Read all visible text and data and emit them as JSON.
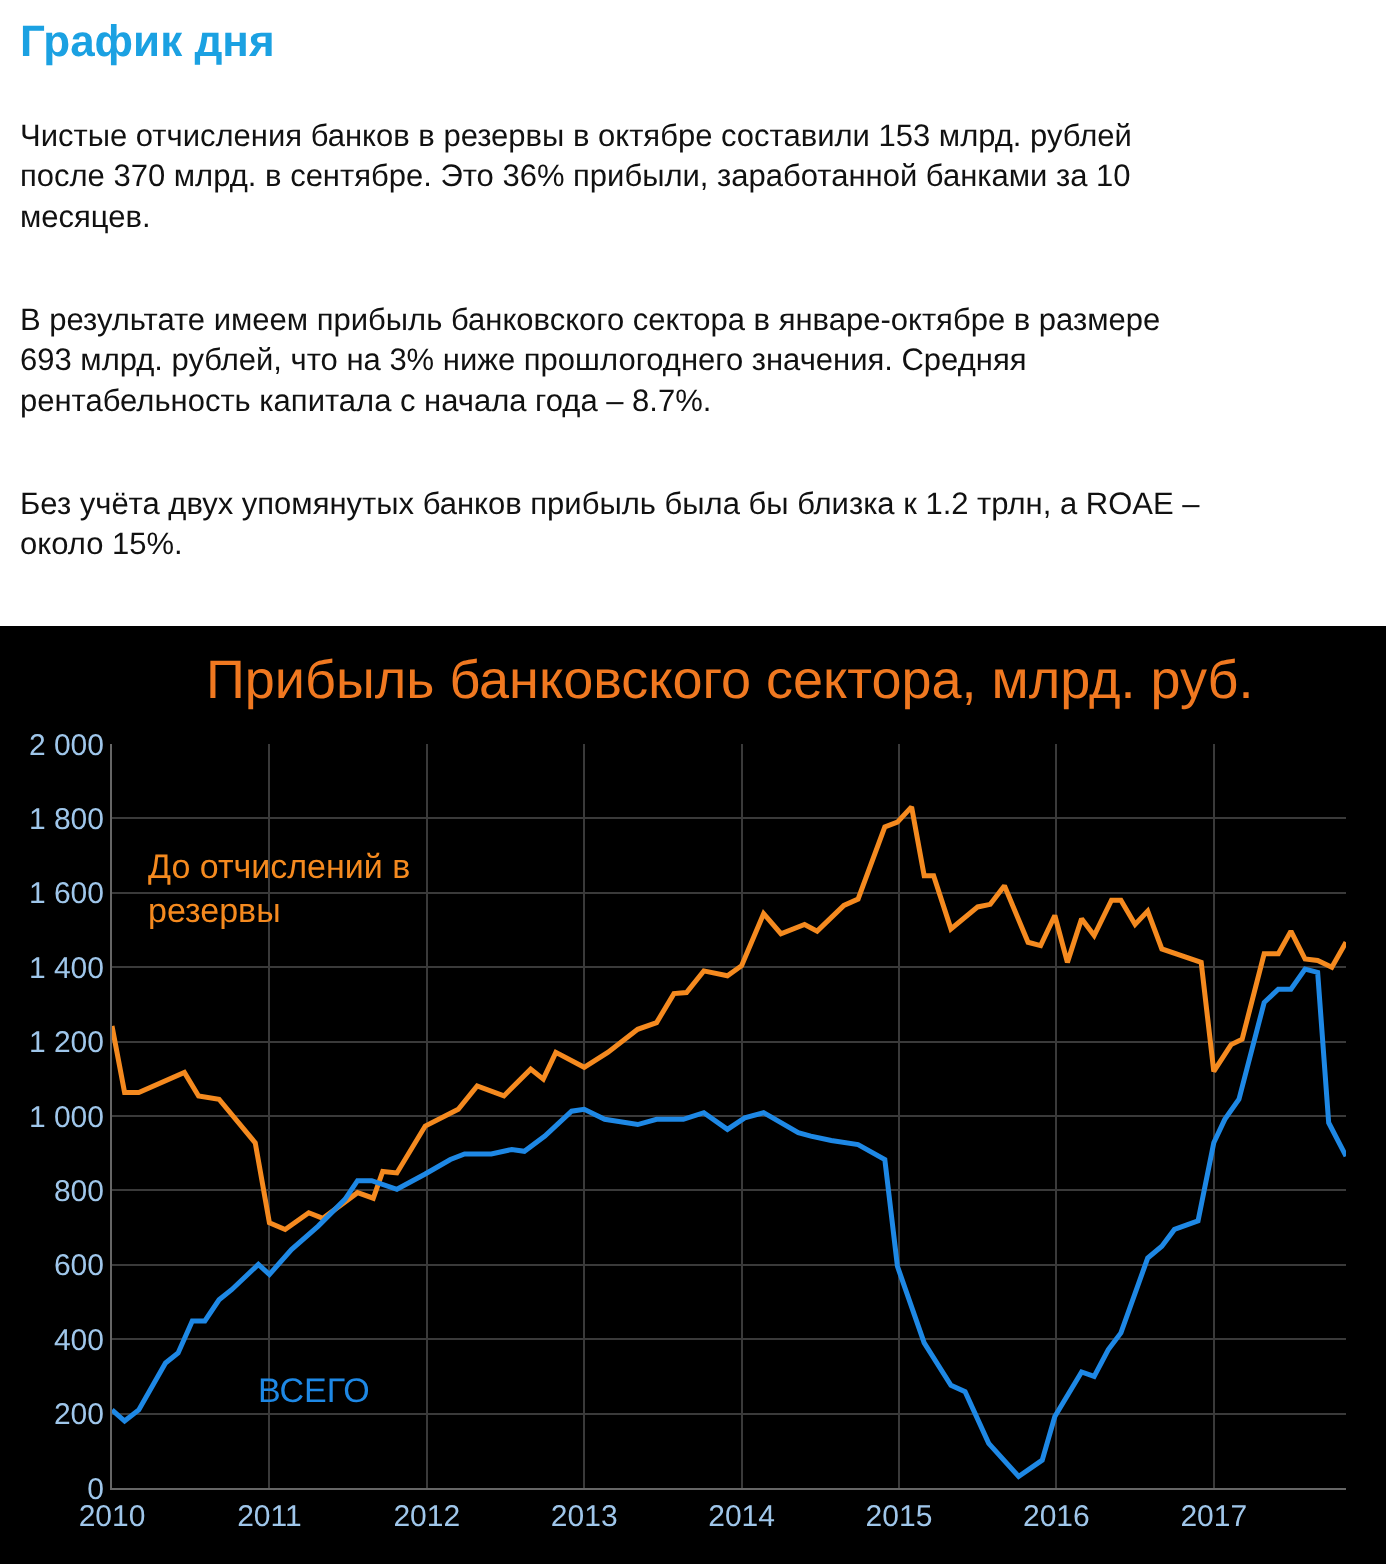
{
  "chart_data": {
    "type": "line",
    "title": "Прибыль банковского сектора, млрд. руб.",
    "annotations": [
      "График дня",
      "Чистые отчисления банков в резервы в октябре составили 153 млрд. рублей после 370 млрд. в сентябре. Это 36% прибыли, заработанной банками за 10 месяцев.",
      "В результате имеем прибыль банковского сектора в январе-октябре в размере 693 млрд. рублей, что на 3% ниже прошлогоднего значения. Средняя рентабельность капитала с начала года – 8.7%.",
      "Без учёта двух упомянутых банков прибыль была бы близка к 1.2 трлн, а ROAE – около 15%."
    ],
    "series": [
      {
        "name": "До отчислений в резервы",
        "color": "#f58a1f",
        "x": [
          2010.0,
          2010.08,
          2010.17,
          2010.46,
          2010.55,
          2010.68,
          2010.91,
          2011.0,
          2011.1,
          2011.25,
          2011.34,
          2011.56,
          2011.66,
          2011.72,
          2011.81,
          2011.99,
          2012.2,
          2012.32,
          2012.49,
          2012.66,
          2012.74,
          2012.82,
          2013.0,
          2013.15,
          2013.34,
          2013.46,
          2013.57,
          2013.65,
          2013.76,
          2013.91,
          2014.0,
          2014.14,
          2014.25,
          2014.4,
          2014.48,
          2014.65,
          2014.74,
          2014.91,
          2014.99,
          2015.08,
          2015.16,
          2015.22,
          2015.33,
          2015.5,
          2015.58,
          2015.67,
          2015.82,
          2015.9,
          2015.99,
          2016.07,
          2016.16,
          2016.24,
          2016.35,
          2016.41,
          2016.5,
          2016.58,
          2016.67,
          2016.92,
          2017.0,
          2017.11,
          2017.18,
          2017.32,
          2017.41,
          2017.49,
          2017.58,
          2017.66,
          2017.75,
          2017.84
        ],
        "values": [
          1242,
          1063,
          1063,
          1117,
          1054,
          1045,
          928,
          713,
          695,
          740,
          725,
          794,
          779,
          851,
          847,
          973,
          1018,
          1081,
          1054,
          1126,
          1099,
          1171,
          1131,
          1171,
          1233,
          1251,
          1329,
          1332,
          1390,
          1377,
          1404,
          1544,
          1490,
          1515,
          1497,
          1566,
          1583,
          1777,
          1790,
          1831,
          1646,
          1646,
          1503,
          1562,
          1569,
          1619,
          1467,
          1458,
          1539,
          1413,
          1530,
          1485,
          1580,
          1580,
          1515,
          1551,
          1449,
          1413,
          1120,
          1192,
          1206,
          1436,
          1436,
          1497,
          1422,
          1418,
          1400,
          1467
        ]
      },
      {
        "name": "ВСЕГО",
        "color": "#1e88e5",
        "x": [
          2010.0,
          2010.08,
          2010.17,
          2010.34,
          2010.42,
          2010.51,
          2010.59,
          2010.68,
          2010.76,
          2010.93,
          2011.0,
          2011.14,
          2011.31,
          2011.48,
          2011.56,
          2011.65,
          2011.81,
          2011.99,
          2012.15,
          2012.24,
          2012.41,
          2012.54,
          2012.62,
          2012.75,
          2012.92,
          2013.0,
          2013.13,
          2013.34,
          2013.46,
          2013.63,
          2013.76,
          2013.91,
          2014.02,
          2014.14,
          2014.36,
          2014.44,
          2014.57,
          2014.74,
          2014.91,
          2014.99,
          2015.16,
          2015.33,
          2015.42,
          2015.57,
          2015.76,
          2015.91,
          2015.99,
          2016.16,
          2016.24,
          2016.33,
          2016.41,
          2016.58,
          2016.67,
          2016.75,
          2016.9,
          2017.0,
          2017.07,
          2017.16,
          2017.32,
          2017.41,
          2017.49,
          2017.58,
          2017.66,
          2017.73,
          2017.84
        ],
        "values": [
          210,
          180,
          210,
          336,
          363,
          449,
          449,
          506,
          533,
          601,
          574,
          641,
          704,
          776,
          826,
          826,
          803,
          844,
          883,
          898,
          898,
          910,
          905,
          946,
          1013,
          1018,
          991,
          977,
          991,
          991,
          1009,
          964,
          995,
          1009,
          955,
          946,
          934,
          923,
          883,
          596,
          390,
          276,
          259,
          120,
          31,
          75,
          192,
          312,
          300,
          372,
          417,
          618,
          650,
          695,
          718,
          928,
          991,
          1045,
          1305,
          1341,
          1341,
          1395,
          1386,
          982,
          892
        ]
      }
    ],
    "xlim": [
      2010,
      2017.84
    ],
    "xticks": [
      2010,
      2011,
      2012,
      2013,
      2014,
      2015,
      2016,
      2017
    ],
    "ylim": [
      0,
      2000
    ],
    "yticks": [
      0,
      200,
      400,
      600,
      800,
      {
        "value": 1000,
        "label": "1 000"
      },
      {
        "value": 1200,
        "label": "1 200"
      },
      {
        "value": 1400,
        "label": "1 400"
      },
      {
        "value": 1600,
        "label": "1 600"
      },
      {
        "value": 1800,
        "label": "1 800"
      },
      {
        "value": 2000,
        "label": "2 000"
      }
    ],
    "grid": true,
    "legend": false,
    "marker": "none",
    "line_style": "solid"
  }
}
